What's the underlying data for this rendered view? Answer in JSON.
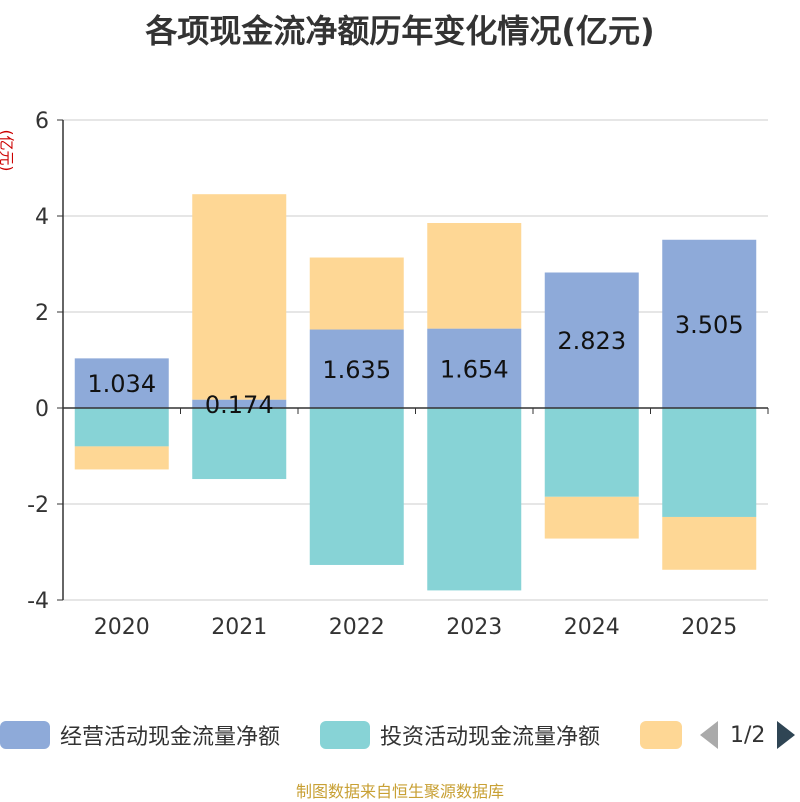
{
  "title": "各项现金流净额历年变化情况(亿元)",
  "y_unit": "(亿元)",
  "source": "制图数据来自恒生聚源数据库",
  "legend_pager": {
    "page_text": "1/2"
  },
  "chart_data": {
    "type": "bar",
    "stacked": true,
    "categories": [
      "2020",
      "2021",
      "2022",
      "2023",
      "2024",
      "2025"
    ],
    "ylim": [
      -4,
      6
    ],
    "yticks": [
      -4,
      -2,
      0,
      2,
      4,
      6
    ],
    "grid": true,
    "legend_position": "bottom",
    "series": [
      {
        "name": "经营活动现金流量净额",
        "color": "#8eaad9",
        "values": [
          1.034,
          0.174,
          1.635,
          1.654,
          2.823,
          3.505
        ]
      },
      {
        "name": "投资活动现金流量净额",
        "color": "#87d3d6",
        "values": [
          -0.8,
          -1.48,
          -3.27,
          -3.8,
          -1.85,
          -2.27
        ]
      },
      {
        "name": "",
        "color": "#fed795",
        "values": [
          -0.48,
          4.28,
          1.5,
          2.2,
          -0.87,
          -1.1
        ]
      }
    ],
    "data_labels": [
      "1.034",
      "0.174",
      "1.635",
      "1.654",
      "2.823",
      "3.505"
    ]
  }
}
